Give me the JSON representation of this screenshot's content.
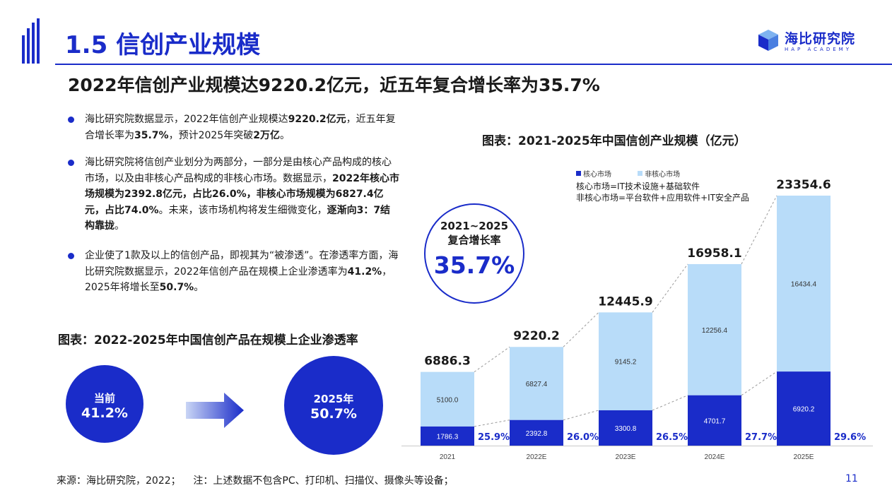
{
  "header": {
    "title": "1.5 信创产业规模",
    "logo_text": "海比研究院",
    "logo_sub": "HAP ACADEMY"
  },
  "subtitle": "2022年信创产业规模达9220.2亿元，近五年复合增长率为35.7%",
  "bullets": [
    [
      {
        "t": "海比研究院数据显示，2022年信创产业规模达",
        "b": false
      },
      {
        "t": "9220.2亿元",
        "b": true
      },
      {
        "t": "，近五年复合增长率为",
        "b": false
      },
      {
        "t": "35.7%",
        "b": true
      },
      {
        "t": "，预计2025年突破",
        "b": false
      },
      {
        "t": "2万亿",
        "b": true
      },
      {
        "t": "。",
        "b": false
      }
    ],
    [
      {
        "t": "海比研究院将信创产业划分为两部分，一部分是由核心产品构成的核心市场，以及由非核心产品构成的非核心市场。数据显示，",
        "b": false
      },
      {
        "t": "2022年核心市场规模为2392.8亿元，占比26.0%，非核心市场规模为6827.4亿元，占比74.0%",
        "b": true
      },
      {
        "t": "。未来，该市场机构将发生细微变化，",
        "b": false
      },
      {
        "t": "逐渐向3：7结构靠拢",
        "b": true
      },
      {
        "t": "。",
        "b": false
      }
    ],
    [
      {
        "t": "企业使了1款及以上的信创产品，即视其为“被渗透”。在渗透率方面，海比研究院数据显示，2022年信创产品在规模上企业渗透率为",
        "b": false
      },
      {
        "t": "41.2%",
        "b": true
      },
      {
        "t": "，2025年将增长至",
        "b": false
      },
      {
        "t": "50.7%",
        "b": true
      },
      {
        "t": "。",
        "b": false
      }
    ]
  ],
  "penetration": {
    "title": "图表：2022-2025年中国信创产品在规模上企业渗透率",
    "current_label": "当前",
    "current_value": "41.2%",
    "future_label": "2025年",
    "future_value": "50.7%"
  },
  "cagr": {
    "label_line1": "2021~2025",
    "label_line2": "复合增长率",
    "value": "35.7%"
  },
  "legend_notes": {
    "line1": "核心市场=IT技术设施+基础软件",
    "line2": "非核心市场=平台软件+应用软件+IT安全产品"
  },
  "colors": {
    "core": "#1a2cc9",
    "noncore": "#b8dcf9",
    "accent": "#1a2cc9"
  },
  "chart_data": {
    "type": "bar",
    "stacked": true,
    "title": "图表：2021-2025年中国信创产业规模（亿元）",
    "categories": [
      "2021",
      "2022E",
      "2023E",
      "2024E",
      "2025E"
    ],
    "series": [
      {
        "name": "核心市场",
        "values": [
          1786.3,
          2392.8,
          3300.8,
          4701.7,
          6920.2
        ],
        "value_labels": [
          "1786.3",
          "2392.8",
          "3300.8",
          "4701.7",
          "6920.2"
        ],
        "color": "#1a2cc9"
      },
      {
        "name": "非核心市场",
        "values": [
          5100.0,
          6827.4,
          9145.2,
          12256.4,
          16434.4
        ],
        "value_labels": [
          "5100.0",
          "6827.4",
          "9145.2",
          "12256.4",
          "16434.4"
        ],
        "color": "#b8dcf9"
      }
    ],
    "totals": [
      "6886.3",
      "9220.2",
      "12445.9",
      "16958.1",
      "23354.6"
    ],
    "core_share": [
      "25.9%",
      "26.0%",
      "26.5%",
      "27.7%",
      "29.6%"
    ],
    "ylim": [
      0,
      23354.6
    ],
    "legend": "top",
    "grid": false
  },
  "footer": {
    "source": "来源：海比研究院，2022；    注：上述数据不包含PC、打印机、扫描仪、摄像头等设备；",
    "page": "11"
  }
}
